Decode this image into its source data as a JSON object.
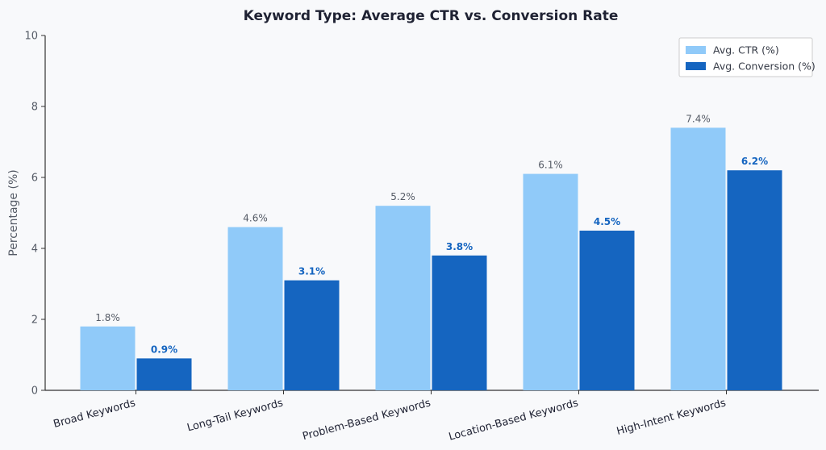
{
  "chart_data": {
    "type": "bar",
    "title": "Keyword Type: Average CTR vs. Conversion Rate",
    "xlabel": "",
    "ylabel": "Percentage (%)",
    "ylim": [
      0,
      10
    ],
    "yticks": [
      "0",
      "2",
      "4",
      "6",
      "8",
      "10"
    ],
    "categories": [
      "Broad Keywords",
      "Long-Tail Keywords",
      "Problem-Based Keywords",
      "Location-Based Keywords",
      "High-Intent Keywords"
    ],
    "series": [
      {
        "name": "Avg. CTR (%)",
        "color": "#90caf9",
        "values": [
          1.8,
          4.6,
          5.2,
          6.1,
          7.4
        ],
        "labels": [
          "1.8%",
          "4.6%",
          "5.2%",
          "6.1%",
          "7.4%"
        ]
      },
      {
        "name": "Avg. Conversion (%)",
        "color": "#1565c0",
        "values": [
          0.9,
          3.1,
          3.8,
          4.5,
          6.2
        ],
        "labels": [
          "0.9%",
          "3.1%",
          "3.8%",
          "4.5%",
          "6.2%"
        ]
      }
    ],
    "grid": false,
    "legend_position": "top-right"
  }
}
